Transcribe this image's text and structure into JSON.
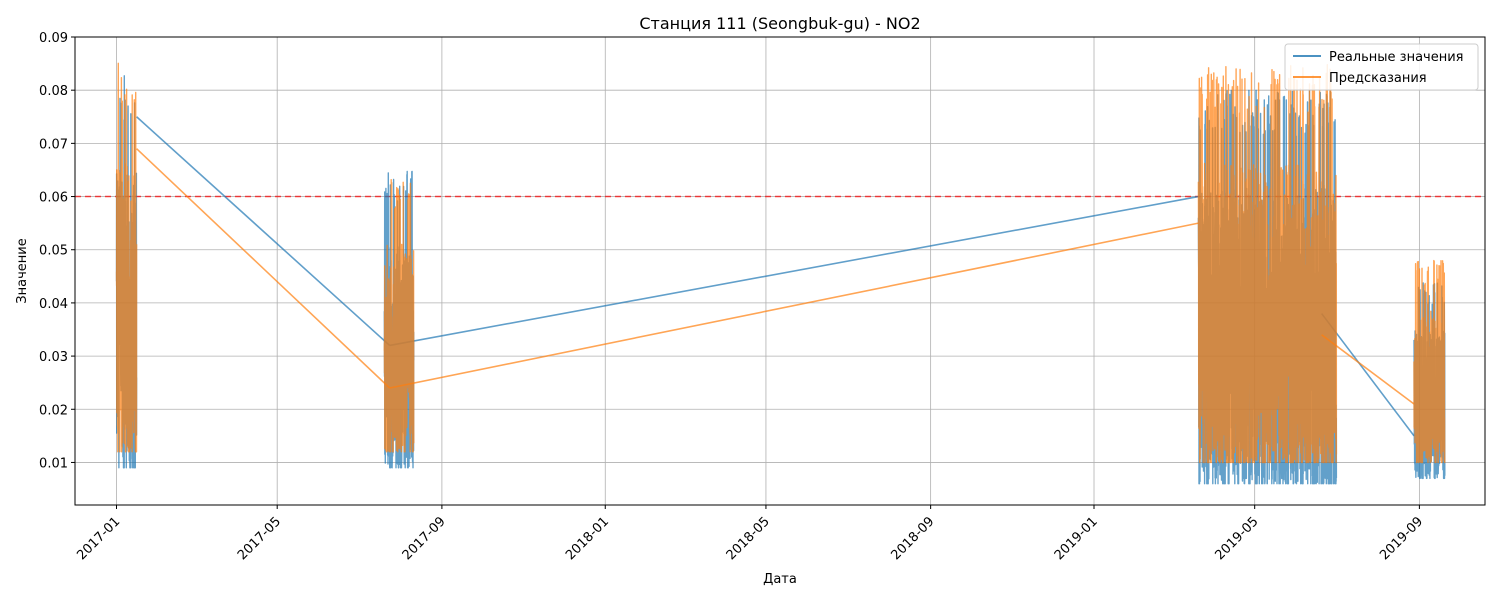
{
  "chart_data": {
    "type": "line",
    "title": "Станция 111 (Seongbuk-gu) - NO2",
    "xlabel": "Дата",
    "ylabel": "Значение",
    "x_range": [
      "2016-12-01",
      "2019-10-20"
    ],
    "ylim": [
      0.002,
      0.09
    ],
    "x_ticks": [
      "2017-01",
      "2017-05",
      "2017-09",
      "2018-01",
      "2018-05",
      "2018-09",
      "2019-01",
      "2019-05",
      "2019-09"
    ],
    "y_ticks": [
      0.01,
      0.02,
      0.03,
      0.04,
      0.05,
      0.06,
      0.07,
      0.08,
      0.09
    ],
    "y_tick_labels": [
      "0.01",
      "0.02",
      "0.03",
      "0.04",
      "0.05",
      "0.06",
      "0.07",
      "0.08",
      "0.09"
    ],
    "grid": true,
    "legend_position": "top-right",
    "threshold": {
      "value": 0.06,
      "color": "#ff0000",
      "style": "dashed"
    },
    "series": [
      {
        "name": "Реальные значения",
        "color": "#1f77b4",
        "segments": [
          {
            "start": "2017-01-01",
            "end": "2017-01-16",
            "min": 0.009,
            "max": 0.083
          },
          {
            "start": "2017-07-20",
            "end": "2017-08-11",
            "min": 0.009,
            "max": 0.066
          },
          {
            "start": "2019-03-20",
            "end": "2019-07-01",
            "min": 0.006,
            "max": 0.08
          },
          {
            "start": "2019-08-28",
            "end": "2019-09-20",
            "min": 0.007,
            "max": 0.044
          }
        ],
        "bridges": [
          {
            "from": [
              "2017-01-16",
              0.075
            ],
            "to": [
              "2017-07-24",
              0.032
            ]
          },
          {
            "from": [
              "2017-07-24",
              0.032
            ],
            "to": [
              "2019-03-20",
              0.06
            ]
          },
          {
            "from": [
              "2019-06-20",
              0.038
            ],
            "to": [
              "2019-08-28",
              0.015
            ]
          }
        ]
      },
      {
        "name": "Предсказания",
        "color": "#ff7f0e",
        "segments": [
          {
            "start": "2017-01-01",
            "end": "2017-01-16",
            "min": 0.012,
            "max": 0.086
          },
          {
            "start": "2017-07-20",
            "end": "2017-08-11",
            "min": 0.012,
            "max": 0.064
          },
          {
            "start": "2019-03-20",
            "end": "2019-07-01",
            "min": 0.01,
            "max": 0.085
          },
          {
            "start": "2019-08-28",
            "end": "2019-09-20",
            "min": 0.01,
            "max": 0.048
          }
        ],
        "bridges": [
          {
            "from": [
              "2017-01-16",
              0.069
            ],
            "to": [
              "2017-07-24",
              0.024
            ]
          },
          {
            "from": [
              "2017-07-24",
              0.024
            ],
            "to": [
              "2019-03-20",
              0.055
            ]
          },
          {
            "from": [
              "2019-06-20",
              0.034
            ],
            "to": [
              "2019-08-28",
              0.021
            ]
          }
        ]
      }
    ]
  }
}
